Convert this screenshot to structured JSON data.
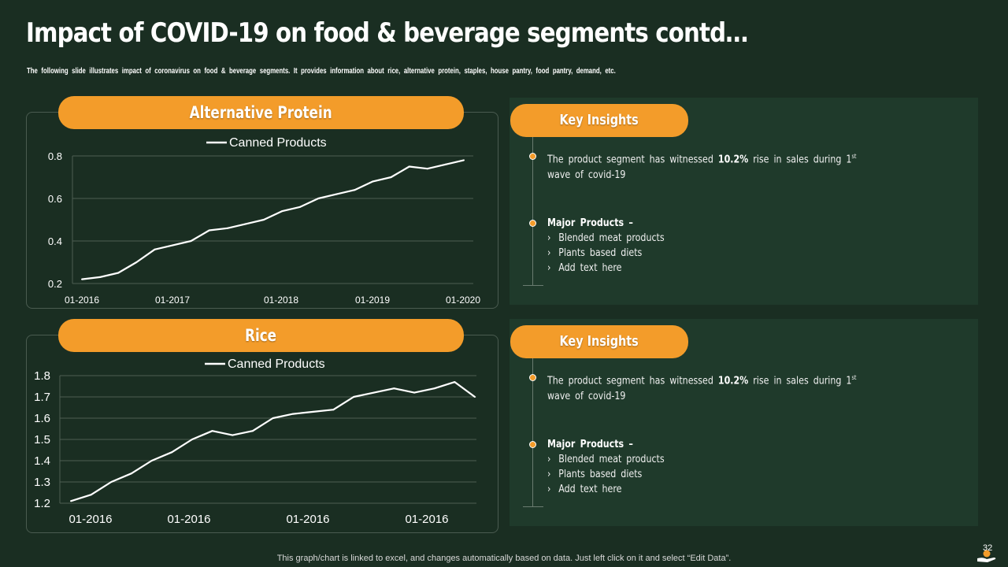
{
  "header": {
    "title": "Impact of COVID-19 on food & beverage segments contd…",
    "subtitle": "The following slide illustrates impact of coronavirus on food & beverage segments. It provides information about rice, alternative protein, staples, house pantry, food pantry, demand, etc."
  },
  "colors": {
    "accent": "#f39c2a",
    "background": "#1a2e22",
    "panel": "#1f3a2b",
    "line": "#ffffff"
  },
  "chart_data": [
    {
      "type": "line",
      "title": "Alternative Protein",
      "legend": "Canned Products",
      "x_tick_labels": [
        "01-2016",
        "01-2017",
        "01-2018",
        "01-2019",
        "01-2020"
      ],
      "y_ticks": [
        0.2,
        0.4,
        0.6,
        0.8
      ],
      "ylim": [
        0.2,
        0.8
      ],
      "grid": true,
      "values": [
        0.22,
        0.23,
        0.25,
        0.3,
        0.36,
        0.38,
        0.4,
        0.45,
        0.46,
        0.48,
        0.5,
        0.54,
        0.56,
        0.6,
        0.62,
        0.64,
        0.68,
        0.7,
        0.75,
        0.74,
        0.76,
        0.78
      ]
    },
    {
      "type": "line",
      "title": "Rice",
      "legend": "Canned Products",
      "x_tick_labels": [
        "01-2016",
        "01-2016",
        "01-2016",
        "01-2016"
      ],
      "y_ticks": [
        1.2,
        1.3,
        1.4,
        1.5,
        1.6,
        1.7,
        1.8
      ],
      "ylim": [
        1.2,
        1.8
      ],
      "grid": true,
      "values": [
        1.21,
        1.24,
        1.3,
        1.34,
        1.4,
        1.44,
        1.5,
        1.54,
        1.52,
        1.54,
        1.6,
        1.62,
        1.63,
        1.64,
        1.7,
        1.72,
        1.74,
        1.72,
        1.74,
        1.77,
        1.7
      ]
    }
  ],
  "insights": [
    {
      "heading": "Key Insights",
      "text_pre": "The product segment has witnessed ",
      "highlight": "10.2%",
      "text_post": " rise in sales during 1",
      "superscript": "st",
      "text_line2": "wave of covid-19",
      "products_title": "Major Products –",
      "products": [
        "Blended meat products",
        "Plants based diets",
        "Add text here"
      ]
    },
    {
      "heading": "Key Insights",
      "text_pre": "The product segment has witnessed ",
      "highlight": "10.2%",
      "text_post": " rise in sales during 1",
      "superscript": "st",
      "text_line2": "wave of covid-19",
      "products_title": "Major Products –",
      "products": [
        "Blended meat products",
        "Plants based diets",
        "Add text here"
      ]
    }
  ],
  "footer": {
    "note": "This graph/chart is linked to excel,  and changes automatically based on data. Just left click on it and select “Edit Data”.",
    "page_number": "32"
  }
}
